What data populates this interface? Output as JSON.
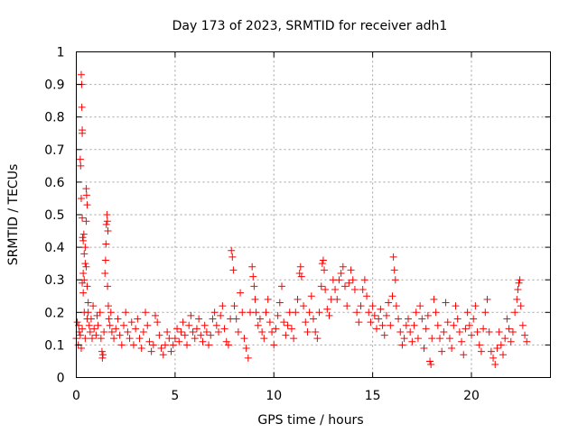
{
  "chart_data": {
    "type": "scatter",
    "title": "Day 173 of 2023, SRMTID for receiver adh1",
    "xlabel": "GPS time / hours",
    "ylabel": "SRMTID / TECUs",
    "xlim": [
      0,
      24
    ],
    "ylim": [
      0,
      1
    ],
    "xticks": [
      0,
      5,
      10,
      15,
      20
    ],
    "xtick_labels": [
      "0",
      "5",
      "10",
      "15",
      "20"
    ],
    "yticks": [
      0,
      0.1,
      0.2,
      0.3,
      0.4,
      0.5,
      0.6,
      0.7,
      0.8,
      0.9,
      1
    ],
    "ytick_labels": [
      "0",
      "0.1",
      "0.2",
      "0.3",
      "0.4",
      "0.5",
      "0.6",
      "0.7",
      "0.8",
      "0.9",
      "1"
    ],
    "grid": true,
    "marker": "+",
    "series": [
      {
        "name": "SRMTID",
        "color": "#ff0000",
        "points": [
          [
            0.0,
            0.12
          ],
          [
            0.05,
            0.17
          ],
          [
            0.1,
            0.1
          ],
          [
            0.12,
            0.16
          ],
          [
            0.15,
            0.14
          ],
          [
            0.2,
            0.67
          ],
          [
            0.22,
            0.65
          ],
          [
            0.25,
            0.93
          ],
          [
            0.27,
            0.9
          ],
          [
            0.28,
            0.83
          ],
          [
            0.3,
            0.76
          ],
          [
            0.3,
            0.75
          ],
          [
            0.25,
            0.55
          ],
          [
            0.3,
            0.49
          ],
          [
            0.32,
            0.43
          ],
          [
            0.35,
            0.42
          ],
          [
            0.38,
            0.44
          ],
          [
            0.4,
            0.38
          ],
          [
            0.35,
            0.32
          ],
          [
            0.3,
            0.29
          ],
          [
            0.4,
            0.3
          ],
          [
            0.45,
            0.35
          ],
          [
            0.5,
            0.58
          ],
          [
            0.52,
            0.56
          ],
          [
            0.55,
            0.53
          ],
          [
            0.5,
            0.48
          ],
          [
            0.45,
            0.4
          ],
          [
            0.5,
            0.34
          ],
          [
            0.55,
            0.28
          ],
          [
            0.6,
            0.23
          ],
          [
            0.6,
            0.2
          ],
          [
            0.35,
            0.26
          ],
          [
            0.2,
            0.13
          ],
          [
            0.25,
            0.09
          ],
          [
            0.3,
            0.15
          ],
          [
            0.4,
            0.2
          ],
          [
            0.45,
            0.12
          ],
          [
            0.55,
            0.18
          ],
          [
            0.65,
            0.16
          ],
          [
            0.7,
            0.14
          ],
          [
            0.75,
            0.18
          ],
          [
            0.8,
            0.12
          ],
          [
            0.85,
            0.22
          ],
          [
            0.9,
            0.15
          ],
          [
            1.0,
            0.13
          ],
          [
            1.05,
            0.19
          ],
          [
            1.1,
            0.16
          ],
          [
            1.2,
            0.2
          ],
          [
            1.25,
            0.12
          ],
          [
            1.3,
            0.08
          ],
          [
            1.32,
            0.06
          ],
          [
            1.35,
            0.07
          ],
          [
            1.4,
            0.14
          ],
          [
            1.45,
            0.32
          ],
          [
            1.48,
            0.36
          ],
          [
            1.5,
            0.41
          ],
          [
            1.52,
            0.47
          ],
          [
            1.55,
            0.5
          ],
          [
            1.57,
            0.48
          ],
          [
            1.6,
            0.45
          ],
          [
            1.58,
            0.28
          ],
          [
            1.62,
            0.22
          ],
          [
            1.65,
            0.18
          ],
          [
            1.7,
            0.16
          ],
          [
            1.75,
            0.2
          ],
          [
            1.8,
            0.14
          ],
          [
            1.9,
            0.12
          ],
          [
            2.0,
            0.15
          ],
          [
            2.1,
            0.18
          ],
          [
            2.2,
            0.13
          ],
          [
            2.3,
            0.1
          ],
          [
            2.4,
            0.16
          ],
          [
            2.5,
            0.2
          ],
          [
            2.6,
            0.14
          ],
          [
            2.7,
            0.12
          ],
          [
            2.8,
            0.17
          ],
          [
            2.9,
            0.1
          ],
          [
            3.0,
            0.15
          ],
          [
            3.1,
            0.18
          ],
          [
            3.2,
            0.12
          ],
          [
            3.3,
            0.09
          ],
          [
            3.4,
            0.14
          ],
          [
            3.5,
            0.2
          ],
          [
            3.6,
            0.16
          ],
          [
            3.7,
            0.11
          ],
          [
            3.8,
            0.08
          ],
          [
            3.9,
            0.1
          ],
          [
            4.0,
            0.19
          ],
          [
            4.1,
            0.17
          ],
          [
            4.2,
            0.13
          ],
          [
            4.3,
            0.09
          ],
          [
            4.4,
            0.07
          ],
          [
            4.5,
            0.1
          ],
          [
            4.6,
            0.14
          ],
          [
            4.7,
            0.12
          ],
          [
            4.8,
            0.08
          ],
          [
            4.9,
            0.1
          ],
          [
            5.0,
            0.12
          ],
          [
            5.1,
            0.15
          ],
          [
            5.2,
            0.11
          ],
          [
            5.3,
            0.14
          ],
          [
            5.4,
            0.17
          ],
          [
            5.5,
            0.13
          ],
          [
            5.6,
            0.1
          ],
          [
            5.7,
            0.16
          ],
          [
            5.8,
            0.19
          ],
          [
            5.9,
            0.14
          ],
          [
            6.0,
            0.12
          ],
          [
            6.1,
            0.15
          ],
          [
            6.2,
            0.18
          ],
          [
            6.3,
            0.13
          ],
          [
            6.4,
            0.11
          ],
          [
            6.5,
            0.16
          ],
          [
            6.6,
            0.14
          ],
          [
            6.7,
            0.1
          ],
          [
            6.8,
            0.13
          ],
          [
            6.9,
            0.18
          ],
          [
            7.0,
            0.2
          ],
          [
            7.1,
            0.16
          ],
          [
            7.2,
            0.14
          ],
          [
            7.3,
            0.19
          ],
          [
            7.4,
            0.22
          ],
          [
            7.5,
            0.15
          ],
          [
            7.6,
            0.11
          ],
          [
            7.7,
            0.1
          ],
          [
            7.8,
            0.18
          ],
          [
            7.85,
            0.39
          ],
          [
            7.9,
            0.37
          ],
          [
            7.95,
            0.33
          ],
          [
            8.0,
            0.22
          ],
          [
            8.1,
            0.18
          ],
          [
            8.2,
            0.14
          ],
          [
            8.3,
            0.26
          ],
          [
            8.4,
            0.2
          ],
          [
            8.5,
            0.12
          ],
          [
            8.6,
            0.09
          ],
          [
            8.7,
            0.06
          ],
          [
            8.8,
            0.2
          ],
          [
            8.9,
            0.34
          ],
          [
            8.95,
            0.31
          ],
          [
            9.0,
            0.28
          ],
          [
            9.05,
            0.24
          ],
          [
            9.1,
            0.2
          ],
          [
            9.2,
            0.16
          ],
          [
            9.3,
            0.18
          ],
          [
            9.4,
            0.14
          ],
          [
            9.5,
            0.12
          ],
          [
            9.6,
            0.2
          ],
          [
            9.7,
            0.24
          ],
          [
            9.8,
            0.17
          ],
          [
            9.9,
            0.14
          ],
          [
            10.0,
            0.1
          ],
          [
            10.1,
            0.15
          ],
          [
            10.2,
            0.19
          ],
          [
            10.3,
            0.23
          ],
          [
            10.4,
            0.28
          ],
          [
            10.5,
            0.17
          ],
          [
            10.6,
            0.13
          ],
          [
            10.7,
            0.16
          ],
          [
            10.8,
            0.2
          ],
          [
            10.9,
            0.15
          ],
          [
            11.0,
            0.12
          ],
          [
            11.1,
            0.2
          ],
          [
            11.2,
            0.24
          ],
          [
            11.3,
            0.32
          ],
          [
            11.35,
            0.34
          ],
          [
            11.4,
            0.31
          ],
          [
            11.5,
            0.22
          ],
          [
            11.6,
            0.17
          ],
          [
            11.7,
            0.14
          ],
          [
            11.8,
            0.2
          ],
          [
            11.9,
            0.25
          ],
          [
            12.0,
            0.18
          ],
          [
            12.1,
            0.14
          ],
          [
            12.2,
            0.12
          ],
          [
            12.3,
            0.2
          ],
          [
            12.4,
            0.28
          ],
          [
            12.45,
            0.35
          ],
          [
            12.5,
            0.36
          ],
          [
            12.55,
            0.33
          ],
          [
            12.6,
            0.27
          ],
          [
            12.7,
            0.21
          ],
          [
            12.8,
            0.19
          ],
          [
            12.9,
            0.24
          ],
          [
            13.0,
            0.3
          ],
          [
            13.1,
            0.27
          ],
          [
            13.2,
            0.24
          ],
          [
            13.3,
            0.3
          ],
          [
            13.4,
            0.32
          ],
          [
            13.5,
            0.34
          ],
          [
            13.6,
            0.28
          ],
          [
            13.7,
            0.22
          ],
          [
            13.8,
            0.29
          ],
          [
            13.9,
            0.33
          ],
          [
            14.0,
            0.3
          ],
          [
            14.1,
            0.27
          ],
          [
            14.2,
            0.2
          ],
          [
            14.3,
            0.17
          ],
          [
            14.4,
            0.22
          ],
          [
            14.5,
            0.27
          ],
          [
            14.6,
            0.3
          ],
          [
            14.7,
            0.25
          ],
          [
            14.8,
            0.2
          ],
          [
            14.9,
            0.17
          ],
          [
            15.0,
            0.22
          ],
          [
            15.1,
            0.19
          ],
          [
            15.2,
            0.15
          ],
          [
            15.3,
            0.18
          ],
          [
            15.4,
            0.21
          ],
          [
            15.5,
            0.16
          ],
          [
            15.6,
            0.13
          ],
          [
            15.7,
            0.19
          ],
          [
            15.8,
            0.23
          ],
          [
            15.9,
            0.16
          ],
          [
            16.0,
            0.25
          ],
          [
            16.05,
            0.37
          ],
          [
            16.1,
            0.33
          ],
          [
            16.15,
            0.3
          ],
          [
            16.2,
            0.22
          ],
          [
            16.3,
            0.18
          ],
          [
            16.4,
            0.14
          ],
          [
            16.5,
            0.1
          ],
          [
            16.6,
            0.12
          ],
          [
            16.7,
            0.16
          ],
          [
            16.8,
            0.18
          ],
          [
            16.9,
            0.14
          ],
          [
            17.0,
            0.11
          ],
          [
            17.1,
            0.16
          ],
          [
            17.2,
            0.2
          ],
          [
            17.3,
            0.12
          ],
          [
            17.4,
            0.22
          ],
          [
            17.5,
            0.18
          ],
          [
            17.6,
            0.09
          ],
          [
            17.7,
            0.15
          ],
          [
            17.8,
            0.19
          ],
          [
            17.9,
            0.05
          ],
          [
            17.95,
            0.04
          ],
          [
            18.0,
            0.12
          ],
          [
            18.1,
            0.24
          ],
          [
            18.2,
            0.2
          ],
          [
            18.3,
            0.16
          ],
          [
            18.4,
            0.12
          ],
          [
            18.5,
            0.08
          ],
          [
            18.6,
            0.14
          ],
          [
            18.7,
            0.23
          ],
          [
            18.8,
            0.17
          ],
          [
            18.9,
            0.12
          ],
          [
            19.0,
            0.09
          ],
          [
            19.1,
            0.16
          ],
          [
            19.2,
            0.22
          ],
          [
            19.3,
            0.18
          ],
          [
            19.4,
            0.14
          ],
          [
            19.5,
            0.11
          ],
          [
            19.6,
            0.07
          ],
          [
            19.7,
            0.15
          ],
          [
            19.8,
            0.2
          ],
          [
            19.9,
            0.16
          ],
          [
            20.0,
            0.13
          ],
          [
            20.1,
            0.18
          ],
          [
            20.2,
            0.22
          ],
          [
            20.3,
            0.14
          ],
          [
            20.4,
            0.1
          ],
          [
            20.5,
            0.08
          ],
          [
            20.6,
            0.15
          ],
          [
            20.7,
            0.2
          ],
          [
            20.8,
            0.24
          ],
          [
            20.9,
            0.14
          ],
          [
            21.0,
            0.08
          ],
          [
            21.1,
            0.06
          ],
          [
            21.2,
            0.04
          ],
          [
            21.3,
            0.09
          ],
          [
            21.4,
            0.14
          ],
          [
            21.5,
            0.1
          ],
          [
            21.6,
            0.07
          ],
          [
            21.7,
            0.12
          ],
          [
            21.8,
            0.18
          ],
          [
            21.9,
            0.15
          ],
          [
            22.0,
            0.11
          ],
          [
            22.1,
            0.14
          ],
          [
            22.2,
            0.2
          ],
          [
            22.3,
            0.24
          ],
          [
            22.35,
            0.27
          ],
          [
            22.4,
            0.29
          ],
          [
            22.45,
            0.3
          ],
          [
            22.5,
            0.22
          ],
          [
            22.6,
            0.16
          ],
          [
            22.7,
            0.13
          ],
          [
            22.8,
            0.11
          ]
        ]
      }
    ]
  }
}
